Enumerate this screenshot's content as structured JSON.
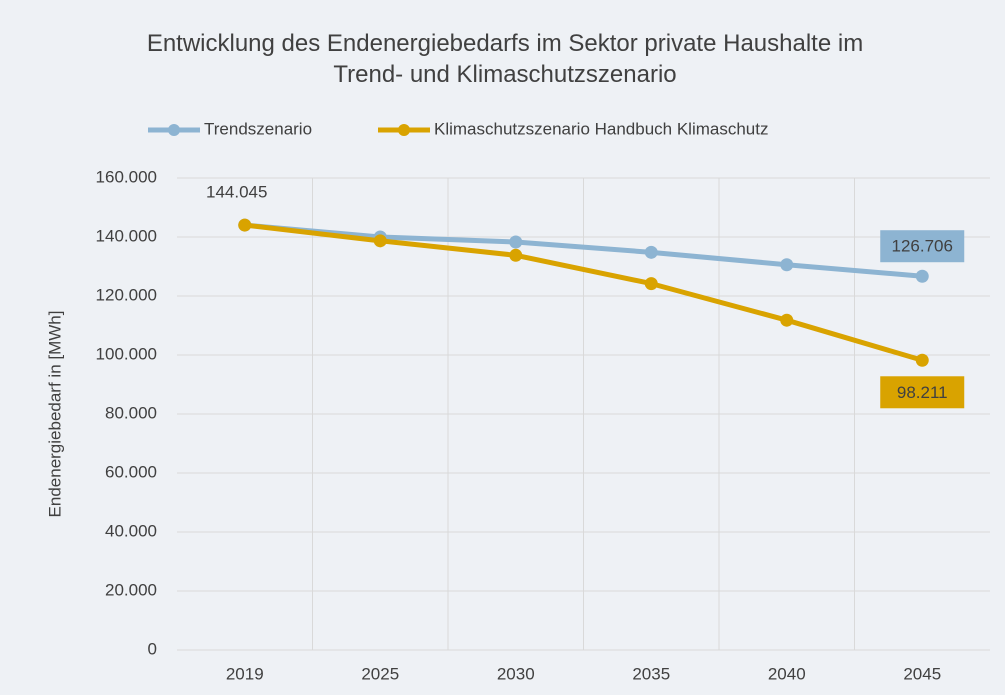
{
  "chart_data": {
    "type": "line",
    "title": "Entwicklung des Endenergiebedarfs im Sektor private Haushalte im Trend- und Klimaschutzszenario",
    "y_label": "Endenergiebedarf in [MWh]",
    "categories": [
      "2019",
      "2025",
      "2030",
      "2035",
      "2040",
      "2045"
    ],
    "series": [
      {
        "name": "Trendszenario",
        "color": "#8db4d2",
        "values": [
          144045,
          140000,
          138300,
          134800,
          130600,
          126706
        ],
        "value_labels": [
          "144.045",
          null,
          null,
          null,
          null,
          "126.706"
        ]
      },
      {
        "name": "Klimaschutzszenario Handbuch Klimaschutz",
        "color": "#d9a300",
        "values": [
          144045,
          138700,
          133800,
          124200,
          111800,
          98211
        ],
        "value_labels": [
          null,
          null,
          null,
          null,
          null,
          "98.211"
        ]
      }
    ],
    "ylim": [
      0,
      160000
    ],
    "yticks": [
      0,
      {
        "value": 20000,
        "label": "20.000"
      },
      {
        "value": 40000,
        "label": "40.000"
      },
      {
        "value": 60000,
        "label": "60.000"
      },
      {
        "value": 80000,
        "label": "80.000"
      },
      {
        "value": 100000,
        "label": "100.000"
      },
      {
        "value": 120000,
        "label": "120.000"
      },
      {
        "value": 140000,
        "label": "140.000"
      },
      {
        "value": 160000,
        "label": "160.000"
      }
    ],
    "grid": true
  }
}
